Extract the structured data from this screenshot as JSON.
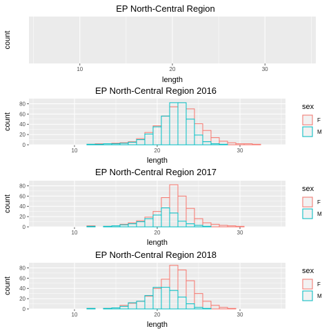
{
  "colors": {
    "F": "#F8766D",
    "M": "#00BFC4",
    "panel_bg": "#EBEBEB",
    "grid": "#FFFFFF",
    "tick": "#4D4D4D"
  },
  "legend": {
    "title": "sex",
    "placement": "right"
  },
  "chart_data": [
    {
      "type": "bar",
      "title": "EP North-Central Region",
      "xlabel": "length",
      "ylabel": "count",
      "xlim": [
        4.5,
        35.5
      ],
      "xticks": [
        10,
        20,
        30
      ],
      "yticks": [],
      "ylim": [
        0,
        1
      ],
      "bin_width": 1,
      "bins": [],
      "series": []
    },
    {
      "type": "bar",
      "title": "EP North-Central Region 2016",
      "xlabel": "length",
      "ylabel": "count",
      "xlim": [
        4.5,
        35.5
      ],
      "xticks": [
        10,
        20,
        30
      ],
      "yticks": [
        0,
        20,
        40,
        60,
        80
      ],
      "ylim": [
        0,
        90
      ],
      "bin_width": 1,
      "bins": [
        6,
        7,
        8,
        9,
        10,
        11,
        12,
        13,
        14,
        15,
        16,
        17,
        18,
        19,
        20,
        21,
        22,
        23,
        24,
        25,
        26,
        27,
        28,
        29,
        30,
        31,
        32,
        33,
        34
      ],
      "series": [
        {
          "name": "F",
          "values": [
            0,
            0,
            0,
            0,
            0,
            0,
            1,
            2,
            2,
            3,
            4,
            6,
            12,
            24,
            37,
            56,
            74,
            82,
            70,
            41,
            28,
            14,
            7,
            4,
            2,
            2,
            1,
            0,
            0
          ]
        },
        {
          "name": "M",
          "values": [
            0,
            0,
            0,
            0,
            0,
            0,
            1,
            1,
            2,
            2,
            3,
            5,
            10,
            21,
            35,
            56,
            82,
            82,
            50,
            19,
            6,
            2,
            1,
            0,
            0,
            0,
            0,
            0,
            0
          ]
        }
      ]
    },
    {
      "type": "bar",
      "title": "EP North-Central Region 2017",
      "xlabel": "length",
      "ylabel": "count",
      "xlim": [
        4.5,
        35.5
      ],
      "xticks": [
        10,
        20,
        30
      ],
      "yticks": [
        0,
        20,
        40,
        60,
        80
      ],
      "ylim": [
        0,
        90
      ],
      "bin_width": 1,
      "bins": [
        6,
        7,
        8,
        9,
        10,
        11,
        12,
        13,
        14,
        15,
        16,
        17,
        18,
        19,
        20,
        21,
        22,
        23,
        24,
        25,
        26,
        27,
        28,
        29,
        30,
        31,
        32,
        33,
        34
      ],
      "series": [
        {
          "name": "F",
          "values": [
            0,
            0,
            0,
            0,
            0,
            0,
            2,
            0,
            1,
            2,
            5,
            8,
            12,
            19,
            30,
            57,
            82,
            60,
            36,
            16,
            8,
            5,
            3,
            2,
            1,
            0,
            0,
            0,
            0
          ]
        },
        {
          "name": "M",
          "values": [
            0,
            0,
            0,
            0,
            0,
            0,
            1,
            0,
            1,
            2,
            4,
            6,
            10,
            16,
            23,
            37,
            27,
            11,
            6,
            3,
            1,
            0,
            0,
            0,
            0,
            0,
            0,
            0,
            0
          ]
        }
      ]
    },
    {
      "type": "bar",
      "title": "EP North-Central Region 2018",
      "xlabel": "length",
      "ylabel": "count",
      "xlim": [
        4.5,
        35.5
      ],
      "xticks": [
        10,
        20,
        30
      ],
      "yticks": [
        0,
        20,
        40,
        60,
        80
      ],
      "ylim": [
        0,
        90
      ],
      "bin_width": 1,
      "bins": [
        6,
        7,
        8,
        9,
        10,
        11,
        12,
        13,
        14,
        15,
        16,
        17,
        18,
        19,
        20,
        21,
        22,
        23,
        24,
        25,
        26,
        27,
        28,
        29,
        30,
        31,
        32,
        33,
        34
      ],
      "series": [
        {
          "name": "F",
          "values": [
            0,
            0,
            0,
            0,
            0,
            0,
            1,
            0,
            1,
            2,
            7,
            11,
            15,
            25,
            40,
            58,
            85,
            76,
            55,
            30,
            15,
            7,
            3,
            1,
            0,
            0,
            0,
            0,
            0
          ]
        },
        {
          "name": "M",
          "values": [
            0,
            0,
            0,
            0,
            0,
            0,
            1,
            0,
            1,
            2,
            5,
            12,
            15,
            26,
            42,
            42,
            36,
            23,
            10,
            3,
            1,
            0,
            0,
            0,
            0,
            0,
            0,
            0,
            0
          ]
        }
      ]
    }
  ]
}
